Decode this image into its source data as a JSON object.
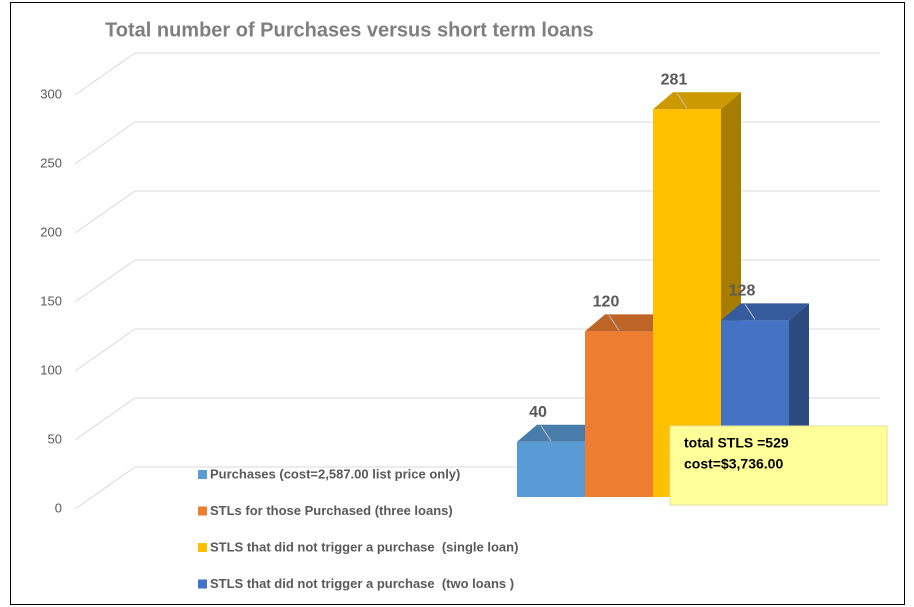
{
  "chart_data": {
    "type": "bar3d",
    "title": "Total number of Purchases versus short term loans",
    "series": [
      {
        "name": "Purchases (cost=2,587.00 list price only)",
        "color": "#5b9bd5",
        "values": [
          40
        ]
      },
      {
        "name": "STLs for those Purchased (three loans)",
        "color": "#ed7d31",
        "values": [
          120
        ]
      },
      {
        "name": "STLS that did not trigger a purchase  (single loan)",
        "color": "#ffc000",
        "values": [
          281
        ]
      },
      {
        "name": "STLS that did not trigger a purchase  (two loans )",
        "color": "#4472c4",
        "values": [
          128
        ]
      }
    ],
    "ylim": [
      0,
      300
    ],
    "yticks": [
      0,
      50,
      100,
      150,
      200,
      250,
      300
    ],
    "grid": true,
    "annotation": [
      "total STLS =529",
      "cost=$3,736.00"
    ]
  }
}
